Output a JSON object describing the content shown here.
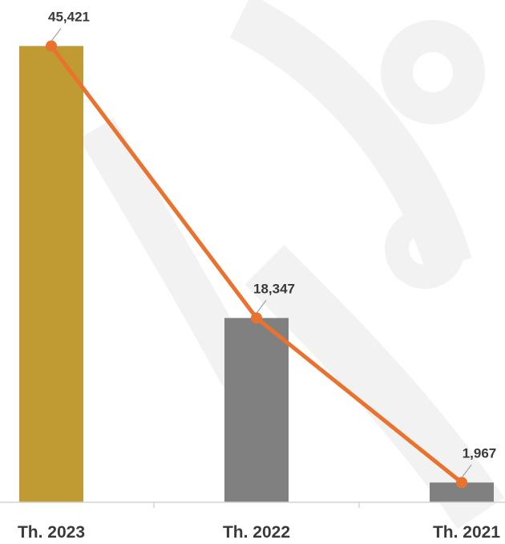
{
  "chart_data": {
    "type": "bar",
    "categories": [
      "Th. 2023",
      "Th. 2022",
      "Th. 2021"
    ],
    "values": [
      45421,
      18347,
      1967
    ],
    "value_labels": [
      "45,421",
      "18,347",
      "1,967"
    ],
    "bar_colors": [
      "#c09a33",
      "#808080",
      "#808080"
    ],
    "line_color": "#e9732e",
    "ylim": [
      0,
      50000
    ],
    "grid": false,
    "legend": "none",
    "overlay_line": true
  }
}
